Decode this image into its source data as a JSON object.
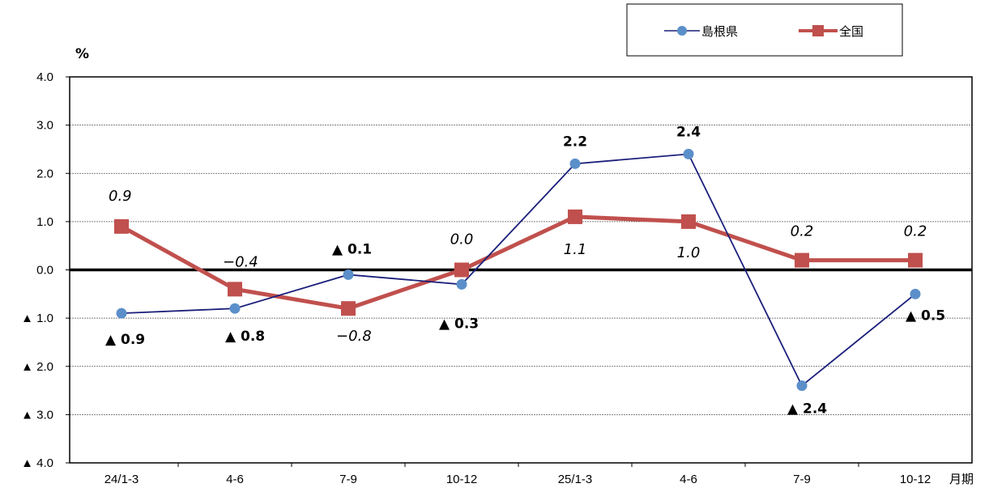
{
  "chart_data": {
    "type": "line",
    "ylabel": "%",
    "xlabel": "月期",
    "ylim": [
      -4.0,
      4.0
    ],
    "yticks": [
      {
        "value": 4.0,
        "label": "4.0"
      },
      {
        "value": 3.0,
        "label": "3.0"
      },
      {
        "value": 2.0,
        "label": "2.0"
      },
      {
        "value": 1.0,
        "label": "1.0"
      },
      {
        "value": 0.0,
        "label": "0.0"
      },
      {
        "value": -1.0,
        "label": "▲ 1.0"
      },
      {
        "value": -2.0,
        "label": "▲ 2.0"
      },
      {
        "value": -3.0,
        "label": "▲ 3.0"
      },
      {
        "value": -4.0,
        "label": "▲ 4.0"
      }
    ],
    "categories": [
      "24/1-3",
      "4-6",
      "7-9",
      "10-12",
      "25/1-3",
      "4-6",
      "7-9",
      "10-12"
    ],
    "grid": true,
    "legend_position": "top-right",
    "series": [
      {
        "name": "島根県",
        "color": "#1a1f7a",
        "marker": "circle",
        "marker_color": "#5b8fc9",
        "values": [
          -0.9,
          -0.8,
          -0.1,
          -0.3,
          2.2,
          2.4,
          -2.4,
          -0.5
        ],
        "labels": [
          "▲ 0.9",
          "▲ 0.8",
          "▲ 0.1",
          "▲ 0.3",
          "2.2",
          "2.4",
          "▲ 2.4",
          "▲ 0.5"
        ]
      },
      {
        "name": "全国",
        "color": "#c0504d",
        "marker": "square",
        "marker_color": "#c0504d",
        "values": [
          0.9,
          -0.4,
          -0.8,
          0.0,
          1.1,
          1.0,
          0.2,
          0.2
        ],
        "labels": [
          "0.9",
          "−0.4",
          "−0.8",
          "0.0",
          "1.1",
          "1.0",
          "0.2",
          "0.2"
        ]
      }
    ]
  }
}
